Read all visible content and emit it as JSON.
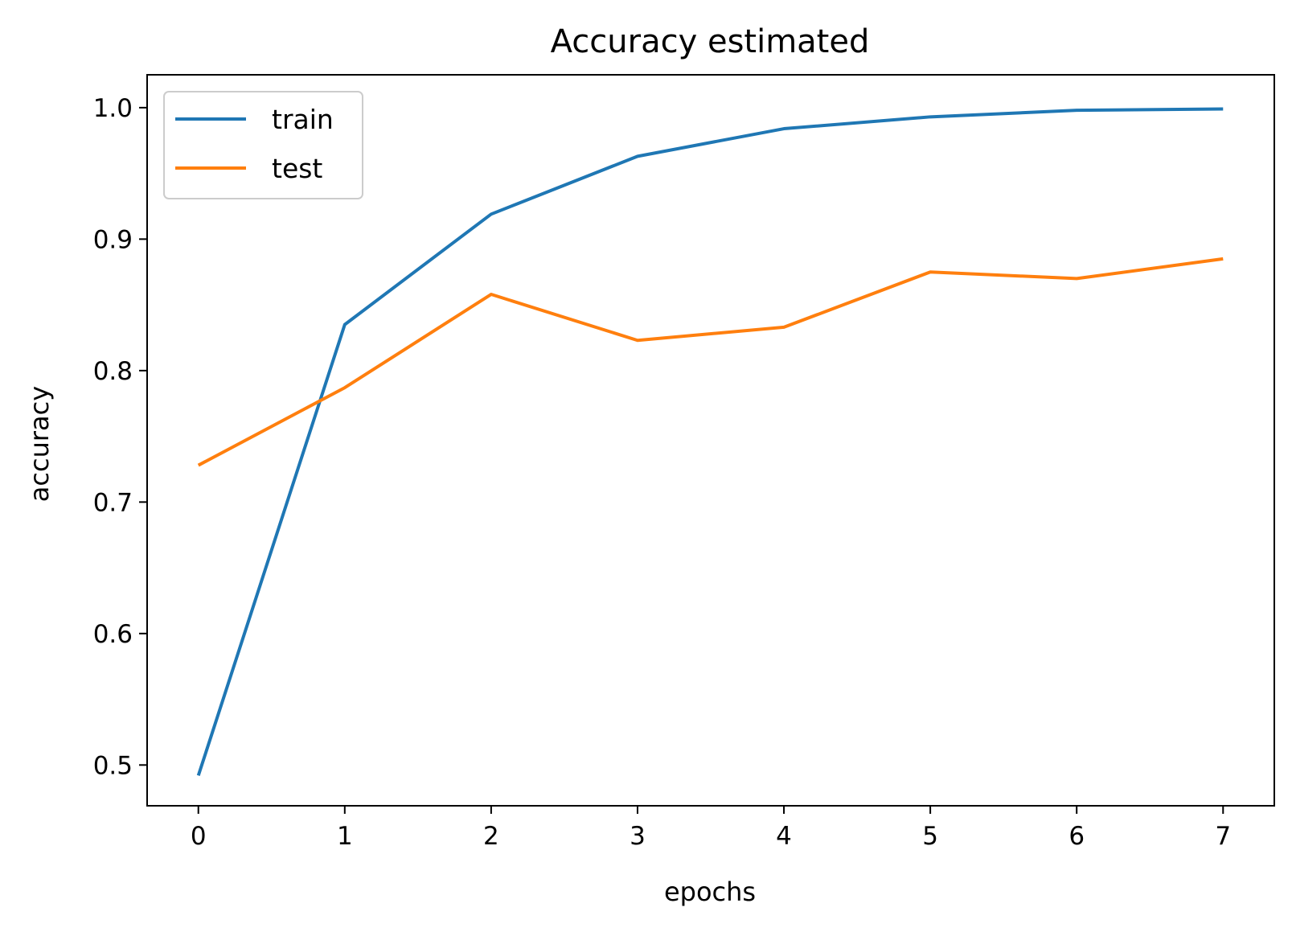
{
  "chart_data": {
    "type": "line",
    "title": "Accuracy estimated",
    "xlabel": "epochs",
    "ylabel": "accuracy",
    "x": [
      0,
      1,
      2,
      3,
      4,
      5,
      6,
      7
    ],
    "xlim": [
      -0.35,
      7.35
    ],
    "ylim": [
      0.469,
      1.025
    ],
    "x_ticks": [
      "0",
      "1",
      "2",
      "3",
      "4",
      "5",
      "6",
      "7"
    ],
    "y_ticks": [
      "0.5",
      "0.6",
      "0.7",
      "0.8",
      "0.9",
      "1.0"
    ],
    "grid": false,
    "legend_position": "upper-left",
    "series": [
      {
        "name": "train",
        "color": "#1f77b4",
        "values": [
          0.492,
          0.835,
          0.919,
          0.963,
          0.984,
          0.993,
          0.998,
          0.999
        ]
      },
      {
        "name": "test",
        "color": "#ff7f0e",
        "values": [
          0.728,
          0.787,
          0.858,
          0.823,
          0.833,
          0.875,
          0.87,
          0.885
        ]
      }
    ]
  }
}
